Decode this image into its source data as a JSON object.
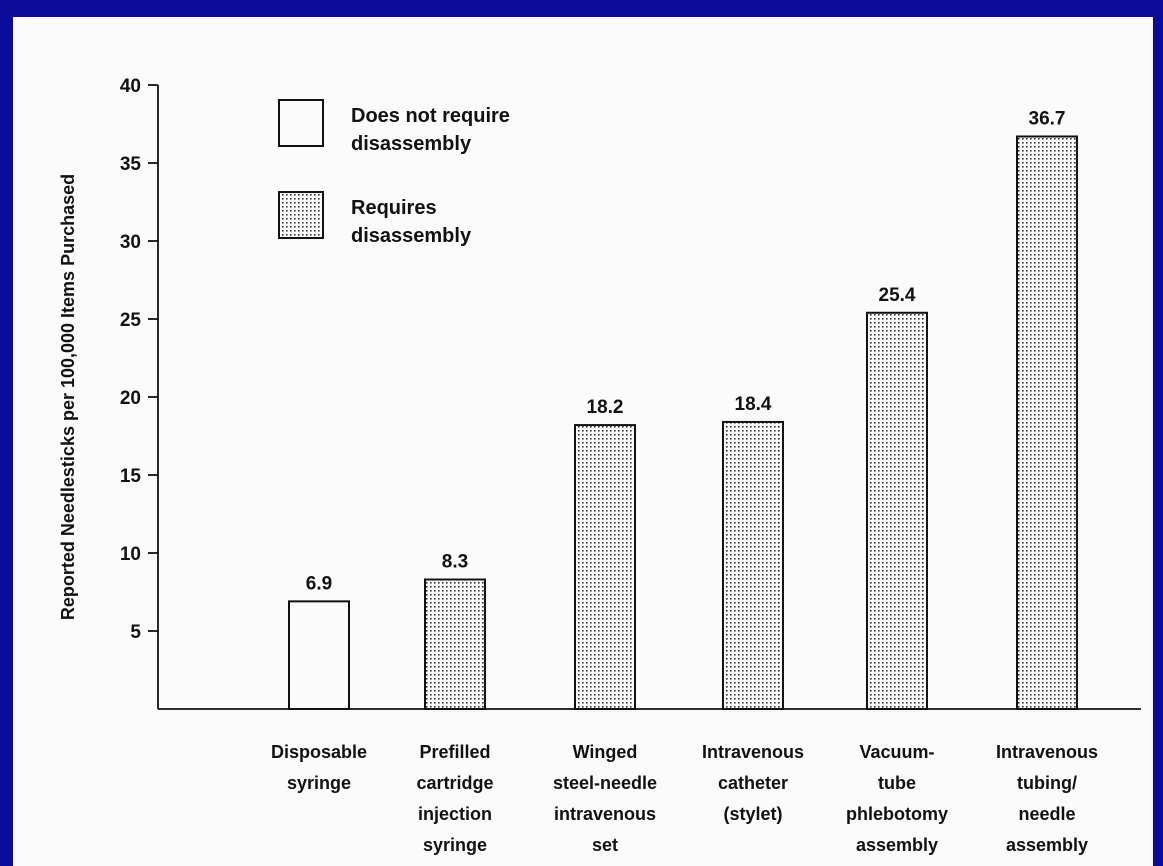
{
  "chart_data": {
    "type": "bar",
    "ylabel": "Reported Needlesticks per 100,000 Items Purchased",
    "xlabel": "",
    "ylim": [
      0,
      40
    ],
    "yticks": [
      5,
      10,
      15,
      20,
      25,
      30,
      35,
      40
    ],
    "legend_position": "top-left",
    "legend": [
      {
        "key": "no-disassembly",
        "lines": [
          "Does not require",
          "disassembly"
        ],
        "pattern": "plain"
      },
      {
        "key": "disassembly",
        "lines": [
          "Requires",
          "disassembly"
        ],
        "pattern": "dotted"
      }
    ],
    "categories": [
      {
        "lines": [
          "Disposable",
          "syringe"
        ],
        "value": 6.9,
        "label": "6.9",
        "group": "no-disassembly"
      },
      {
        "lines": [
          "Prefilled",
          "cartridge",
          "injection",
          "syringe"
        ],
        "value": 8.3,
        "label": "8.3",
        "group": "disassembly"
      },
      {
        "lines": [
          "Winged",
          "steel-needle",
          "intravenous",
          "set"
        ],
        "value": 18.2,
        "label": "18.2",
        "group": "disassembly"
      },
      {
        "lines": [
          "Intravenous",
          "catheter",
          "(stylet)"
        ],
        "value": 18.4,
        "label": "18.4",
        "group": "disassembly"
      },
      {
        "lines": [
          "Vacuum-",
          "tube",
          "phlebotomy",
          "assembly"
        ],
        "value": 25.4,
        "label": "25.4",
        "group": "disassembly"
      },
      {
        "lines": [
          "Intravenous",
          "tubing/",
          "needle",
          "assembly"
        ],
        "value": 36.7,
        "label": "36.7",
        "group": "disassembly"
      }
    ],
    "colors": {
      "background": "#0c0c9c",
      "plot": "#fbfbfb",
      "ink": "#111111"
    }
  }
}
